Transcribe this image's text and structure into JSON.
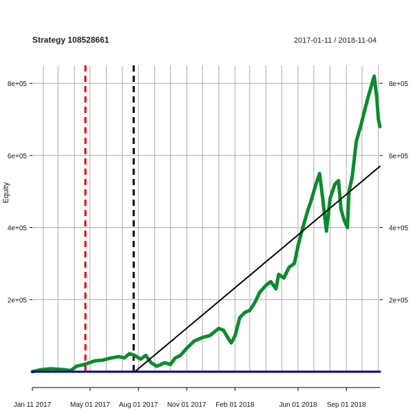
{
  "chart_data": {
    "type": "line",
    "title": "Strategy 108528661",
    "date_range": "2017-01-11 / 2018-11-04",
    "ylabel": "Equity",
    "xlabel": "",
    "grid": true,
    "x_domain": [
      "2017-01-11",
      "2018-11-04"
    ],
    "ylim": [
      0,
      850000
    ],
    "x_ticks": [
      {
        "date": "2017-01-11",
        "label": "Jan 11 2017"
      },
      {
        "date": "2017-05-01",
        "label": "May 01 2017"
      },
      {
        "date": "2017-08-01",
        "label": "Aug 01 2017"
      },
      {
        "date": "2017-11-01",
        "label": "Nov 01 2017"
      },
      {
        "date": "2018-02-01",
        "label": "Feb 01 2018"
      },
      {
        "date": "2018-06-01",
        "label": "Jun 01 2018"
      },
      {
        "date": "2018-09-01",
        "label": "Sep 01 2018"
      }
    ],
    "y_ticks": [
      {
        "value": 200000,
        "label": "2e+05"
      },
      {
        "value": 400000,
        "label": "4e+05"
      },
      {
        "value": 600000,
        "label": "6e+05"
      },
      {
        "value": 800000,
        "label": "8e+05"
      }
    ],
    "vertical_markers": [
      {
        "date": "2017-04-22",
        "color": "#e60000"
      },
      {
        "date": "2017-07-23",
        "color": "#000000"
      }
    ],
    "series": [
      {
        "color": "#0a8a2e",
        "points": [
          [
            "2017-01-11",
            0
          ],
          [
            "2017-01-25",
            5000
          ],
          [
            "2017-02-15",
            8000
          ],
          [
            "2017-03-10",
            6000
          ],
          [
            "2017-03-25",
            3000
          ],
          [
            "2017-04-05",
            15000
          ],
          [
            "2017-04-20",
            20000
          ],
          [
            "2017-05-10",
            30000
          ],
          [
            "2017-05-25",
            32000
          ],
          [
            "2017-06-10",
            38000
          ],
          [
            "2017-06-25",
            42000
          ],
          [
            "2017-07-05",
            38000
          ],
          [
            "2017-07-15",
            50000
          ],
          [
            "2017-07-25",
            45000
          ],
          [
            "2017-08-05",
            35000
          ],
          [
            "2017-08-15",
            45000
          ],
          [
            "2017-08-25",
            25000
          ],
          [
            "2017-09-05",
            15000
          ],
          [
            "2017-09-20",
            25000
          ],
          [
            "2017-10-01",
            20000
          ],
          [
            "2017-10-10",
            38000
          ],
          [
            "2017-10-20",
            45000
          ],
          [
            "2017-11-01",
            65000
          ],
          [
            "2017-11-15",
            85000
          ],
          [
            "2017-12-01",
            95000
          ],
          [
            "2017-12-15",
            100000
          ],
          [
            "2018-01-01",
            120000
          ],
          [
            "2018-01-10",
            115000
          ],
          [
            "2018-01-20",
            90000
          ],
          [
            "2018-01-25",
            80000
          ],
          [
            "2018-02-01",
            100000
          ],
          [
            "2018-02-10",
            150000
          ],
          [
            "2018-02-20",
            165000
          ],
          [
            "2018-03-01",
            170000
          ],
          [
            "2018-03-10",
            190000
          ],
          [
            "2018-03-20",
            220000
          ],
          [
            "2018-04-01",
            240000
          ],
          [
            "2018-04-10",
            250000
          ],
          [
            "2018-04-20",
            230000
          ],
          [
            "2018-04-25",
            270000
          ],
          [
            "2018-05-05",
            260000
          ],
          [
            "2018-05-15",
            290000
          ],
          [
            "2018-05-25",
            300000
          ],
          [
            "2018-06-01",
            350000
          ],
          [
            "2018-06-10",
            400000
          ],
          [
            "2018-06-20",
            450000
          ],
          [
            "2018-06-25",
            470000
          ],
          [
            "2018-07-05",
            520000
          ],
          [
            "2018-07-12",
            550000
          ],
          [
            "2018-07-18",
            480000
          ],
          [
            "2018-07-25",
            390000
          ],
          [
            "2018-08-01",
            480000
          ],
          [
            "2018-08-10",
            520000
          ],
          [
            "2018-08-17",
            530000
          ],
          [
            "2018-08-22",
            450000
          ],
          [
            "2018-08-28",
            420000
          ],
          [
            "2018-09-03",
            400000
          ],
          [
            "2018-09-06",
            500000
          ],
          [
            "2018-09-12",
            540000
          ],
          [
            "2018-09-20",
            640000
          ],
          [
            "2018-09-28",
            680000
          ],
          [
            "2018-10-05",
            720000
          ],
          [
            "2018-10-12",
            760000
          ],
          [
            "2018-10-18",
            790000
          ],
          [
            "2018-10-24",
            820000
          ],
          [
            "2018-10-29",
            760000
          ],
          [
            "2018-11-01",
            700000
          ],
          [
            "2018-11-04",
            680000
          ]
        ]
      },
      {
        "color": "#000000",
        "points": [
          [
            "2017-07-25",
            0
          ],
          [
            "2018-11-04",
            570000
          ]
        ]
      },
      {
        "color": "#00007a",
        "points": [
          [
            "2017-01-11",
            0
          ],
          [
            "2018-11-04",
            0
          ]
        ]
      }
    ]
  }
}
